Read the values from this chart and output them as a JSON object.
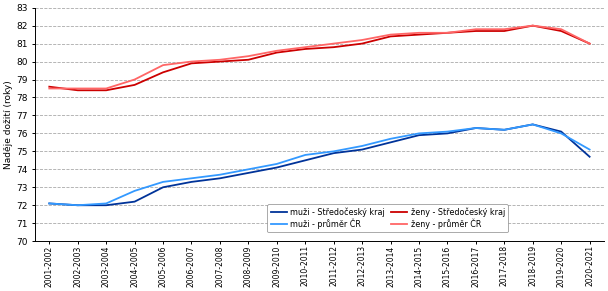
{
  "x_labels": [
    "2001-2002",
    "2002-2003",
    "2003-2004",
    "2004-2005",
    "2005-2006",
    "2006-2007",
    "2007-2008",
    "2008-2009",
    "2009-2010",
    "2010-2011",
    "2011-2012",
    "2012-2013",
    "2013-2014",
    "2014-2015",
    "2015-2016",
    "2016-2017",
    "2017-2018",
    "2018-2019",
    "2019-2020",
    "2020-2021"
  ],
  "muzi_sk": [
    72.1,
    72.0,
    72.0,
    72.2,
    73.0,
    73.3,
    73.5,
    73.8,
    74.1,
    74.5,
    74.9,
    75.1,
    75.5,
    75.9,
    76.0,
    76.3,
    76.2,
    76.5,
    76.1,
    74.7
  ],
  "muzi_cr": [
    72.1,
    72.0,
    72.1,
    72.8,
    73.3,
    73.5,
    73.7,
    74.0,
    74.3,
    74.8,
    75.0,
    75.3,
    75.7,
    76.0,
    76.1,
    76.3,
    76.2,
    76.5,
    76.0,
    75.1
  ],
  "zeny_sk": [
    78.6,
    78.4,
    78.4,
    78.7,
    79.4,
    79.9,
    80.0,
    80.1,
    80.5,
    80.7,
    80.8,
    81.0,
    81.4,
    81.5,
    81.6,
    81.7,
    81.7,
    82.0,
    81.7,
    81.0
  ],
  "zeny_cr": [
    78.5,
    78.5,
    78.5,
    79.0,
    79.8,
    80.0,
    80.1,
    80.3,
    80.6,
    80.8,
    81.0,
    81.2,
    81.5,
    81.6,
    81.6,
    81.8,
    81.8,
    82.0,
    81.8,
    81.0
  ],
  "muzi_sk_color": "#003399",
  "muzi_cr_color": "#3399FF",
  "zeny_sk_color": "#CC0000",
  "zeny_cr_color": "#FF6666",
  "ylabel": "Naděje dožití (roky)",
  "ylim": [
    70,
    83
  ],
  "yticks": [
    70,
    71,
    72,
    73,
    74,
    75,
    76,
    77,
    78,
    79,
    80,
    81,
    82,
    83
  ],
  "legend_labels": [
    "muži - Středočeský kraj",
    "muži - průměr ČR",
    "ženy - Středočeský kraj",
    "ženy - průměr ČR"
  ],
  "background_color": "#ffffff",
  "grid_color": "#aaaaaa",
  "linewidth": 1.3
}
